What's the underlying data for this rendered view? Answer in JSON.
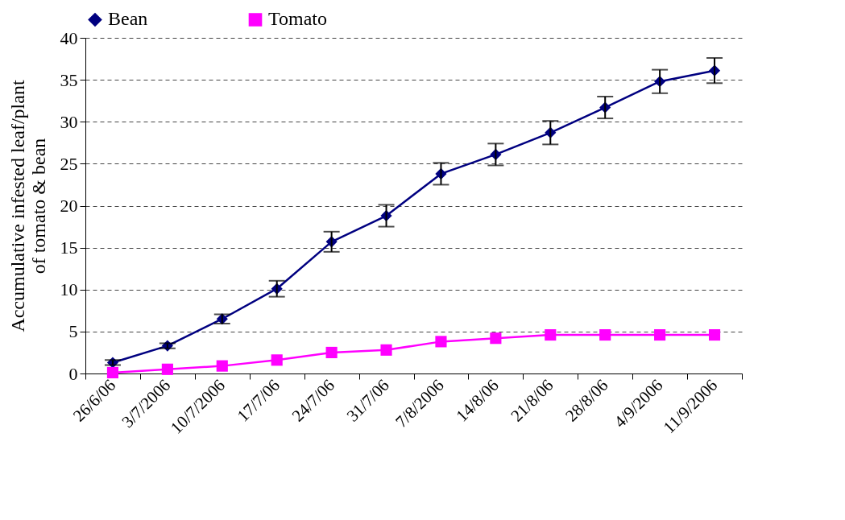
{
  "chart_data": {
    "type": "line",
    "ylabel": "Accumulative infested leaf/plant of tomato & bean",
    "categories": [
      "26/6/06",
      "3/7/2006",
      "10/7/2006",
      "17/7/06",
      "24/7/06",
      "31/7/06",
      "7/8/2006",
      "14/8/06",
      "21/8/06",
      "28/8/06",
      "4/9/2006",
      "11/9/2006"
    ],
    "series": [
      {
        "name": "Bean",
        "color": "#000080",
        "marker": "diamond",
        "values": [
          1.3,
          3.3,
          6.5,
          10.1,
          15.7,
          18.8,
          23.8,
          26.1,
          28.7,
          31.7,
          34.8,
          36.1
        ],
        "errors": [
          0.3,
          0.3,
          0.55,
          0.95,
          1.2,
          1.3,
          1.3,
          1.3,
          1.4,
          1.3,
          1.4,
          1.5
        ]
      },
      {
        "name": "Tomato",
        "color": "#ff00ff",
        "marker": "square",
        "values": [
          0.1,
          0.5,
          0.9,
          1.6,
          2.5,
          2.8,
          3.8,
          4.2,
          4.6,
          4.6,
          4.6,
          4.6
        ]
      }
    ],
    "ylim": [
      0,
      40
    ],
    "yticks": [
      0,
      5,
      10,
      15,
      20,
      25,
      30,
      35,
      40
    ],
    "grid": "y",
    "legend": "top"
  }
}
